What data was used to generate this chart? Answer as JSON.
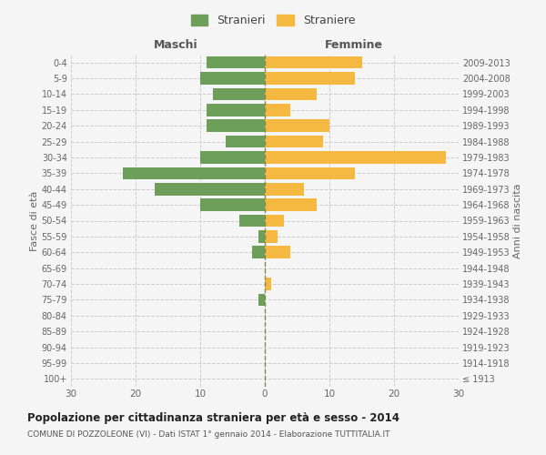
{
  "age_groups": [
    "100+",
    "95-99",
    "90-94",
    "85-89",
    "80-84",
    "75-79",
    "70-74",
    "65-69",
    "60-64",
    "55-59",
    "50-54",
    "45-49",
    "40-44",
    "35-39",
    "30-34",
    "25-29",
    "20-24",
    "15-19",
    "10-14",
    "5-9",
    "0-4"
  ],
  "birth_years": [
    "≤ 1913",
    "1914-1918",
    "1919-1923",
    "1924-1928",
    "1929-1933",
    "1934-1938",
    "1939-1943",
    "1944-1948",
    "1949-1953",
    "1954-1958",
    "1959-1963",
    "1964-1968",
    "1969-1973",
    "1974-1978",
    "1979-1983",
    "1984-1988",
    "1989-1993",
    "1994-1998",
    "1999-2003",
    "2004-2008",
    "2009-2013"
  ],
  "males": [
    0,
    0,
    0,
    0,
    0,
    1,
    0,
    0,
    2,
    1,
    4,
    10,
    17,
    22,
    10,
    6,
    9,
    9,
    8,
    10,
    9
  ],
  "females": [
    0,
    0,
    0,
    0,
    0,
    0,
    1,
    0,
    4,
    2,
    3,
    8,
    6,
    14,
    28,
    9,
    10,
    4,
    8,
    14,
    15
  ],
  "male_color": "#6d9e5a",
  "female_color": "#f5b942",
  "grid_color": "#cccccc",
  "dashed_line_color": "#888844",
  "title": "Popolazione per cittadinanza straniera per età e sesso - 2014",
  "subtitle": "COMUNE DI POZZOLEONE (VI) - Dati ISTAT 1° gennaio 2014 - Elaborazione TUTTITALIA.IT",
  "ylabel_left": "Fasce di età",
  "ylabel_right": "Anni di nascita",
  "xlabel_left": "Maschi",
  "xlabel_right": "Femmine",
  "legend_male": "Stranieri",
  "legend_female": "Straniere",
  "xlim": 30,
  "background_color": "#f5f5f5"
}
